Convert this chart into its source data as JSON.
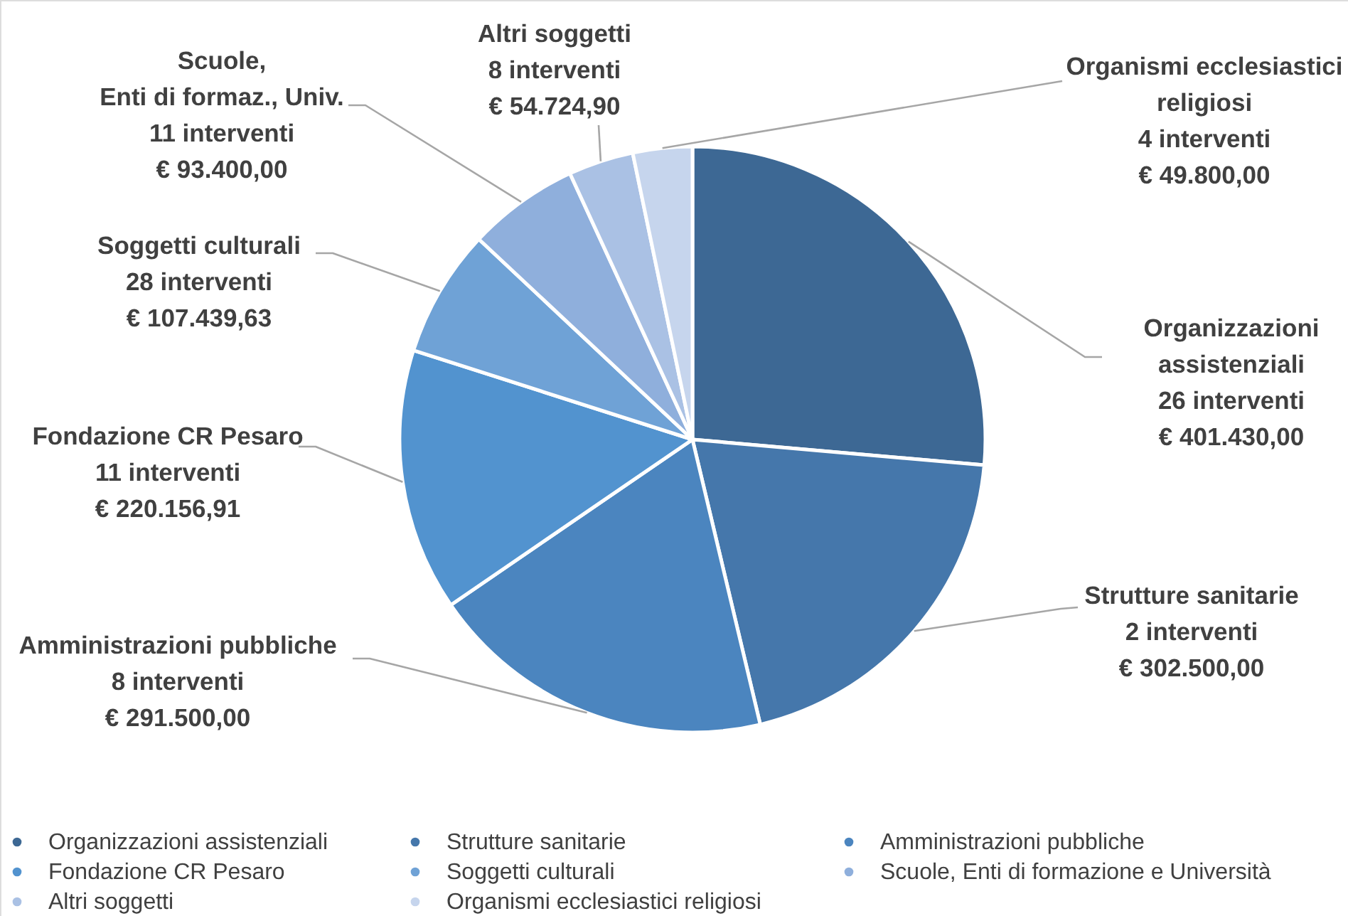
{
  "chart_data": {
    "type": "pie",
    "categories": [
      "Organizzazioni assistenziali",
      "Strutture sanitarie",
      "Amministrazioni pubbliche",
      "Fondazione CR Pesaro",
      "Soggetti culturali",
      "Scuole, Enti di formazione e Università",
      "Altri soggetti",
      "Organismi ecclesiastici religiosi"
    ],
    "values": [
      401430.0,
      302500.0,
      291500.0,
      220156.91,
      107439.63,
      93400.0,
      54724.9,
      49800.0
    ],
    "colors": [
      "#3d6894",
      "#4577ab",
      "#4b85bf",
      "#5293cf",
      "#6fa2d6",
      "#8fafdc",
      "#aac1e4",
      "#c6d5ed"
    ],
    "value_labels": [
      "Organizzazioni\nassistenziali\n26 interventi\n€ 401.430,00",
      "Strutture sanitarie\n2 interventi\n€ 302.500,00",
      "Amministrazioni pubbliche\n8 interventi\n€ 291.500,00",
      "Fondazione CR Pesaro\n11 interventi\n€ 220.156,91",
      "Soggetti culturali\n28 interventi\n€ 107.439,63",
      "Scuole,\nEnti di formaz., Univ.\n11 interventi\n€ 93.400,00",
      "Altri soggetti\n8 interventi\n€ 54.724,90",
      "Organismi ecclesiastici\nreligiosi\n4 interventi\n€ 49.800,00"
    ],
    "legend": "bottom"
  }
}
